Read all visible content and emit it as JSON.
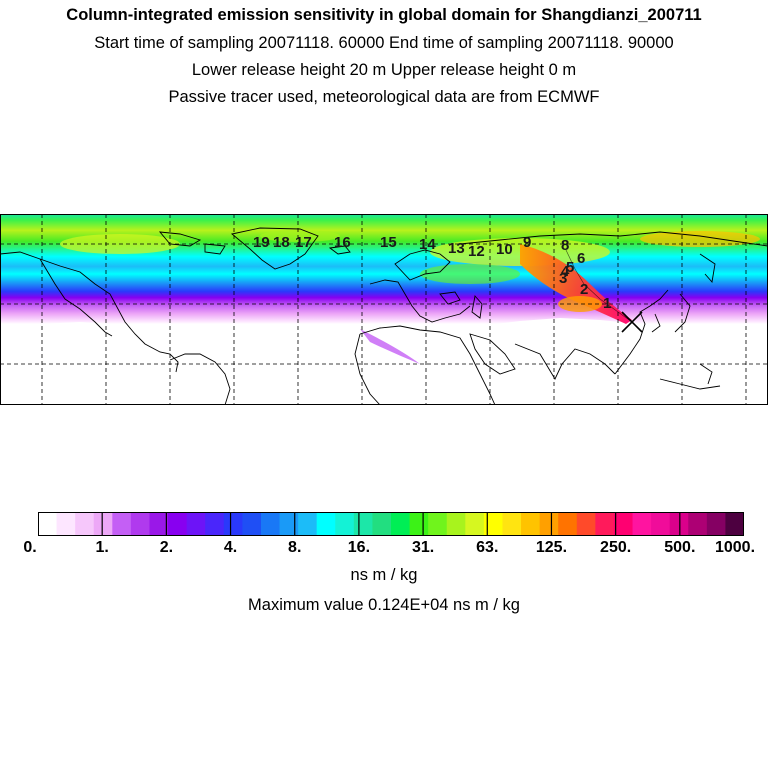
{
  "header": {
    "title": "Column-integrated emission sensitivity in global domain for Shangdianzi_200711",
    "line2": "Start time of sampling 20071118. 60000     End time of sampling 20071118. 90000",
    "line3": "Lower release height   20 m          Upper release height    0 m",
    "line4": "Passive tracer used, meteorological data are from ECMWF"
  },
  "map": {
    "trajectory_labels": [
      "1",
      "2",
      "3",
      "4",
      "5",
      "6",
      "8",
      "9",
      "10",
      "12",
      "13",
      "14",
      "15",
      "16",
      "17",
      "18",
      "19"
    ],
    "release_marker": "receptor-cross-icon"
  },
  "colorbar": {
    "colors": [
      "#ffffff",
      "#fde6ff",
      "#f6c7fb",
      "#eda8f7",
      "#c45ff5",
      "#b03aee",
      "#9a18e8",
      "#8800f0",
      "#6d14f7",
      "#4a26fb",
      "#2a39fb",
      "#1f4ff5",
      "#1978f6",
      "#1a9af7",
      "#1cbcf8",
      "#00ffff",
      "#14f2d6",
      "#1ce7a8",
      "#22de80",
      "#00ee55",
      "#3cf217",
      "#70f41c",
      "#a8f31d",
      "#d6f720",
      "#ffff00",
      "#ffe411",
      "#ffc300",
      "#ffa000",
      "#ff7300",
      "#ff4a2a",
      "#ff1a5b",
      "#ff0071",
      "#ff14a0",
      "#f00c9a",
      "#da008b",
      "#ad0074",
      "#850063",
      "#4d0040"
    ],
    "tick_labels": [
      "0.",
      "1.",
      "2.",
      "4.",
      "8.",
      "16.",
      "31.",
      "63.",
      "125.",
      "250.",
      "500.",
      "1000."
    ]
  },
  "footer": {
    "unit": "ns m / kg",
    "max_value": "Maximum value  0.124E+04 ns m / kg"
  }
}
